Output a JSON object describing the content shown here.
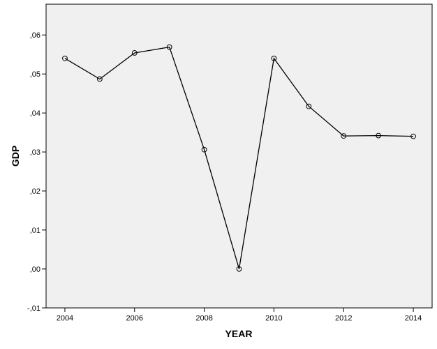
{
  "chart_data": {
    "type": "line",
    "xlabel": "YEAR",
    "ylabel": "GDP",
    "x": [
      2004,
      2005,
      2006,
      2007,
      2008,
      2009,
      2010,
      2011,
      2012,
      2013,
      2014
    ],
    "series": [
      {
        "values": [
          0.054,
          0.0487,
          0.0554,
          0.0569,
          0.0306,
          0.0,
          0.054,
          0.0417,
          0.0341,
          0.0342,
          0.034
        ]
      }
    ],
    "xlim": [
      2003.46,
      2014.54
    ],
    "ylim": [
      -0.01,
      0.0679
    ],
    "x_ticks": [
      2004,
      2006,
      2008,
      2010,
      2012,
      2014
    ],
    "x_tick_labels": [
      "2004",
      "2006",
      "2008",
      "2010",
      "2012",
      "2014"
    ],
    "y_ticks": [
      -0.01,
      0.0,
      0.01,
      0.02,
      0.03,
      0.04,
      0.05,
      0.06
    ],
    "y_tick_labels": [
      "-,01",
      ",00",
      ",01",
      ",02",
      ",03",
      ",04",
      ",05",
      ",06"
    ],
    "grid": false,
    "marker": "open-circle",
    "plot_background": "#f0f0f0",
    "line_color": "#000000"
  }
}
